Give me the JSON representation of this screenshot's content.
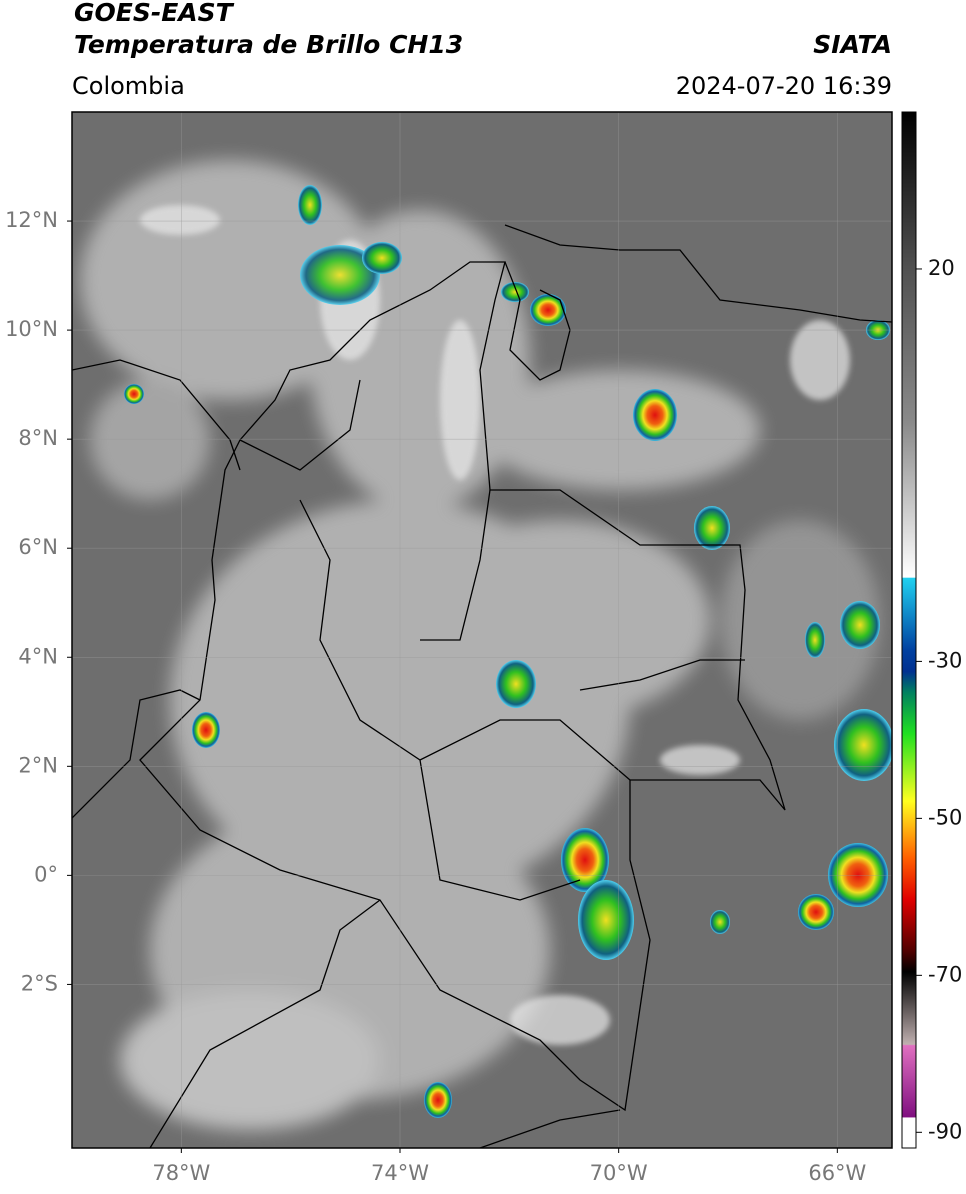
{
  "header": {
    "title": "GOES-EAST",
    "subtitle": "Temperatura de Brillo CH13",
    "source": "SIATA",
    "region": "Colombia",
    "datetime": "2024-07-20 16:39"
  },
  "map": {
    "xlim": [
      -80,
      -65
    ],
    "ylim": [
      -5,
      14
    ],
    "xticks": [
      {
        "value": -78,
        "label": "78°W"
      },
      {
        "value": -74,
        "label": "74°W"
      },
      {
        "value": -70,
        "label": "70°W"
      },
      {
        "value": -66,
        "label": "66°W"
      }
    ],
    "yticks": [
      {
        "value": 12,
        "label": "12°N"
      },
      {
        "value": 10,
        "label": "10°N"
      },
      {
        "value": 8,
        "label": "8°N"
      },
      {
        "value": 6,
        "label": "6°N"
      },
      {
        "value": 4,
        "label": "4°N"
      },
      {
        "value": 2,
        "label": "2°N"
      },
      {
        "value": 0,
        "label": "0°"
      },
      {
        "value": -2,
        "label": "2°S"
      }
    ],
    "grid": true,
    "colorbar": {
      "lim": [
        -92,
        40
      ],
      "ticks": [
        20,
        -30,
        -50,
        -70,
        -90
      ]
    }
  }
}
